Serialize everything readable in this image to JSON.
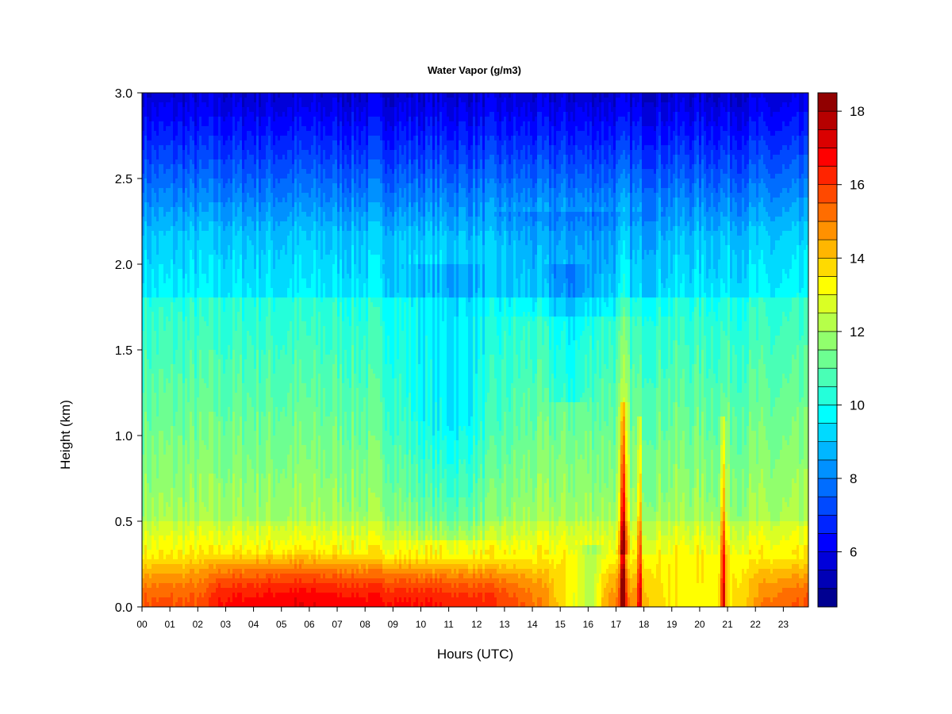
{
  "chart_data": {
    "type": "heatmap",
    "title": "Water Vapor (g/m3)",
    "xlabel": "Hours (UTC)",
    "ylabel": "Height (km)",
    "x_ticks": [
      "00",
      "01",
      "02",
      "03",
      "04",
      "05",
      "06",
      "07",
      "08",
      "09",
      "10",
      "11",
      "12",
      "13",
      "14",
      "15",
      "16",
      "17",
      "18",
      "19",
      "20",
      "21",
      "22",
      "23"
    ],
    "y_ticks": [
      "0.0",
      "0.5",
      "1.0",
      "1.5",
      "2.0",
      "2.5",
      "3.0"
    ],
    "xlim": [
      0,
      23.9
    ],
    "ylim": [
      0,
      3.0
    ],
    "colorbar": {
      "ticks": [
        "6",
        "8",
        "10",
        "12",
        "14",
        "16",
        "18"
      ],
      "tick_values": [
        6,
        8,
        10,
        12,
        14,
        16,
        18
      ],
      "range": [
        4.5,
        18.5
      ],
      "levels": 28,
      "colormap": [
        "#00007f",
        "#0000ff",
        "#007fff",
        "#00ffff",
        "#7fff7f",
        "#ffff00",
        "#ff7f00",
        "#ff0000",
        "#7f0000"
      ]
    },
    "grid": false,
    "legend": "colorbar-right"
  }
}
